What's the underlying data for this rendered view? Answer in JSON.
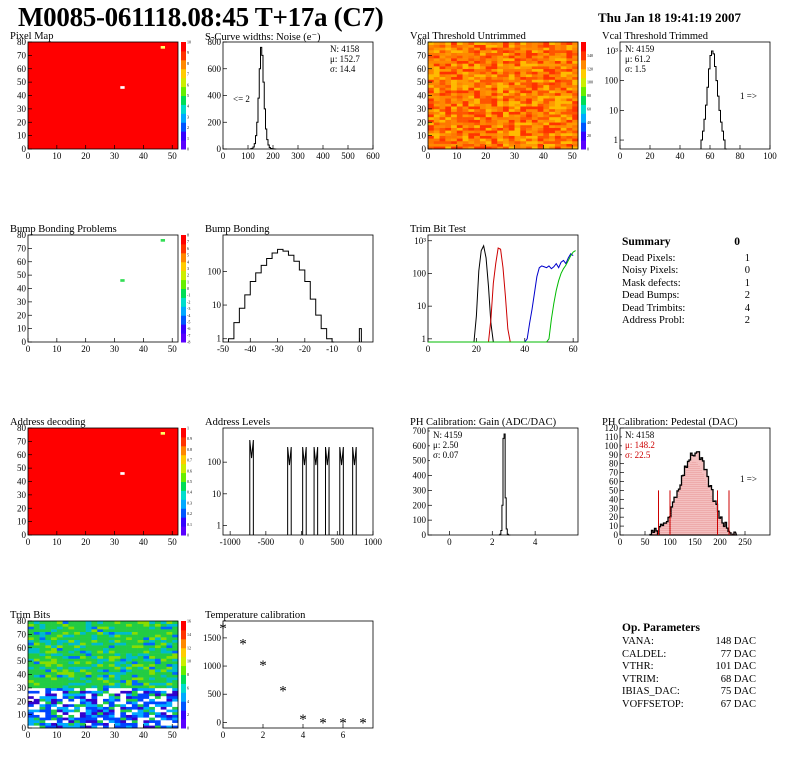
{
  "header": {
    "title": "M0085-061118.08:45 T+17a (C7)",
    "date": "Thu Jan 18 19:41:19 2007"
  },
  "summary": {
    "title": "Summary",
    "total": "0",
    "rows": [
      {
        "label": "Dead Pixels:",
        "value": "1"
      },
      {
        "label": "Noisy Pixels:",
        "value": "0"
      },
      {
        "label": "Mask defects:",
        "value": "1"
      },
      {
        "label": "Dead Bumps:",
        "value": "2"
      },
      {
        "label": "Dead Trimbits:",
        "value": "4"
      },
      {
        "label": "Address Probl:",
        "value": "2"
      }
    ]
  },
  "op_parameters": {
    "title": "Op. Parameters",
    "rows": [
      {
        "label": "VANA:",
        "value": "148 DAC"
      },
      {
        "label": "CALDEL:",
        "value": "77 DAC"
      },
      {
        "label": "VTHR:",
        "value": "101 DAC"
      },
      {
        "label": "VTRIM:",
        "value": "68 DAC"
      },
      {
        "label": "IBIAS_DAC:",
        "value": "75 DAC"
      },
      {
        "label": "VOFFSETOP:",
        "value": "67 DAC"
      }
    ]
  },
  "chart_data": [
    {
      "id": "pixel-map",
      "title": "Pixel Map",
      "type": "heatmap",
      "xlim": [
        0,
        52
      ],
      "ylim": [
        0,
        80
      ],
      "xticks": [
        0,
        10,
        20,
        30,
        40,
        50
      ],
      "yticks": [
        0,
        10,
        20,
        30,
        40,
        50,
        60,
        70,
        80
      ],
      "fill_color": "#ff0000",
      "zlim": [
        0,
        10
      ],
      "zticks": [
        0,
        1,
        2,
        3,
        4,
        5,
        6,
        7,
        8,
        9,
        10
      ],
      "special": [
        {
          "x": 32,
          "y": 46,
          "z": 0,
          "color": "#ffffff"
        },
        {
          "x": 46,
          "y": 76,
          "z": 9,
          "color": "#ffff66"
        }
      ]
    },
    {
      "id": "noise",
      "title": "S-Curve widths: Noise (e⁻)",
      "type": "histogram",
      "xlim": [
        0,
        600
      ],
      "ylim": [
        0,
        800
      ],
      "xticks": [
        0,
        100,
        200,
        300,
        400,
        500,
        600
      ],
      "yticks": [
        0,
        200,
        400,
        600,
        800
      ],
      "stats": [
        "N: 4158",
        "μ: 152.7",
        "σ: 14.4"
      ],
      "note": "<= 2",
      "x": [
        110,
        115,
        120,
        125,
        130,
        135,
        140,
        145,
        150,
        155,
        160,
        165,
        170,
        175,
        180,
        185,
        190,
        195,
        200,
        205
      ],
      "values": [
        2,
        5,
        15,
        40,
        100,
        200,
        380,
        600,
        760,
        700,
        500,
        300,
        150,
        70,
        30,
        10,
        4,
        2,
        1,
        0
      ]
    },
    {
      "id": "vcal-untrimmed",
      "title": "Vcal Threshold Untrimmed",
      "type": "heatmap",
      "xlim": [
        0,
        52
      ],
      "ylim": [
        0,
        80
      ],
      "xticks": [
        0,
        10,
        20,
        30,
        40,
        50
      ],
      "yticks": [
        0,
        10,
        20,
        30,
        40,
        50,
        60,
        70,
        80
      ],
      "zlim": [
        0,
        160
      ],
      "zticks": [
        0,
        20,
        40,
        60,
        80,
        100,
        120,
        140
      ],
      "palette": "orange-red-noise"
    },
    {
      "id": "vcal-trimmed",
      "title": "Vcal Threshold Trimmed",
      "type": "histogram",
      "yscale": "log",
      "xlim": [
        0,
        100
      ],
      "ylim": [
        0.5,
        2000
      ],
      "xticks": [
        0,
        20,
        40,
        60,
        80,
        100
      ],
      "yticks": [
        1,
        10,
        100,
        1000
      ],
      "stats": [
        "N: 4159",
        "μ: 61.2",
        "σ: 1.5"
      ],
      "note": "1 =>",
      "x": [
        54,
        55,
        56,
        57,
        58,
        59,
        60,
        61,
        62,
        63,
        64,
        65,
        66,
        67,
        68,
        69,
        70
      ],
      "values": [
        1,
        2,
        5,
        15,
        60,
        250,
        700,
        1000,
        800,
        300,
        100,
        30,
        10,
        4,
        2,
        1,
        0
      ]
    },
    {
      "id": "bump-bonding-problems",
      "title": "Bump Bonding Problems",
      "type": "heatmap",
      "xlim": [
        0,
        52
      ],
      "ylim": [
        0,
        80
      ],
      "xticks": [
        0,
        10,
        20,
        30,
        40,
        50
      ],
      "yticks": [
        0,
        10,
        20,
        30,
        40,
        50,
        60,
        70,
        80
      ],
      "fill_color": "#ffffff",
      "zlim": [
        -8,
        8
      ],
      "zticks": [
        -8,
        -7,
        -6,
        -5,
        -4,
        -3,
        -2,
        -1,
        0,
        1,
        2,
        3,
        4,
        5,
        6,
        7,
        8
      ],
      "special": [
        {
          "x": 32,
          "y": 46,
          "z": 1,
          "color": "#33dd55"
        },
        {
          "x": 46,
          "y": 76,
          "z": 1,
          "color": "#33dd55"
        }
      ]
    },
    {
      "id": "bump-bonding",
      "title": "Bump Bonding",
      "type": "histogram",
      "yscale": "log",
      "xlim": [
        -50,
        5
      ],
      "ylim": [
        0.8,
        1200
      ],
      "xticks": [
        -50,
        -40,
        -30,
        -20,
        -10,
        0
      ],
      "yticks": [
        1,
        10,
        100
      ],
      "x": [
        -48,
        -46,
        -44,
        -42,
        -40,
        -38,
        -36,
        -34,
        -32,
        -30,
        -28,
        -26,
        -24,
        -22,
        -20,
        -18,
        -16,
        -14,
        -12,
        -10,
        0
      ],
      "values": [
        1,
        3,
        8,
        20,
        50,
        90,
        150,
        240,
        350,
        450,
        400,
        300,
        200,
        110,
        50,
        15,
        5,
        2,
        1,
        0,
        2
      ]
    },
    {
      "id": "trim-bit-test",
      "title": "Trim Bit Test",
      "type": "line",
      "yscale": "log",
      "xlim": [
        0,
        62
      ],
      "ylim": [
        0.8,
        1500
      ],
      "xticks": [
        0,
        20,
        40,
        60
      ],
      "yticks": [
        1,
        10,
        100,
        1000
      ],
      "series": [
        {
          "color": "#000000",
          "x": [
            0,
            19,
            20,
            21,
            22,
            23,
            24,
            25,
            26,
            27
          ],
          "values": [
            0,
            0,
            5,
            120,
            500,
            700,
            300,
            40,
            3,
            0
          ]
        },
        {
          "color": "#cc0000",
          "x": [
            0,
            25,
            26,
            27,
            28,
            29,
            30,
            31,
            32,
            33,
            34
          ],
          "values": [
            0,
            0,
            4,
            50,
            200,
            600,
            550,
            150,
            20,
            2,
            0
          ]
        },
        {
          "color": "#0000cc",
          "x": [
            0,
            40,
            41,
            42,
            43,
            44,
            45,
            46,
            47,
            48,
            49,
            50,
            51,
            52,
            53,
            54,
            55,
            56,
            57,
            58,
            59,
            60
          ],
          "values": [
            0,
            0,
            1,
            3,
            8,
            25,
            80,
            150,
            170,
            160,
            150,
            170,
            140,
            160,
            200,
            150,
            220,
            250,
            200,
            300,
            400,
            350
          ]
        },
        {
          "color": "#00bb00",
          "x": [
            0,
            49,
            50,
            51,
            52,
            53,
            54,
            55,
            56,
            57,
            58,
            59,
            60,
            61
          ],
          "values": [
            0,
            0,
            1,
            4,
            12,
            30,
            60,
            100,
            140,
            180,
            250,
            350,
            450,
            500
          ]
        }
      ]
    },
    {
      "id": "address-decoding",
      "title": "Address decoding",
      "type": "heatmap",
      "xlim": [
        0,
        52
      ],
      "ylim": [
        0,
        80
      ],
      "xticks": [
        0,
        10,
        20,
        30,
        40,
        50
      ],
      "yticks": [
        0,
        10,
        20,
        30,
        40,
        50,
        60,
        70,
        80
      ],
      "fill_color": "#ff0000",
      "zlim": [
        0,
        1
      ],
      "zticks": [
        0,
        0.1,
        0.2,
        0.3,
        0.4,
        0.5,
        0.6,
        0.7,
        0.8,
        0.9,
        1
      ],
      "special": [
        {
          "x": 32,
          "y": 46,
          "z": 0,
          "color": "#ffffff"
        },
        {
          "x": 46,
          "y": 76,
          "z": 0.9,
          "color": "#ffff66"
        }
      ]
    },
    {
      "id": "address-levels",
      "title": "Address Levels",
      "type": "histogram",
      "yscale": "log",
      "xlim": [
        -1100,
        1000
      ],
      "ylim": [
        0.5,
        1200
      ],
      "xticks": [
        -1000,
        -500,
        0,
        500,
        1000
      ],
      "yticks": [
        1,
        10,
        100
      ],
      "peaks": [
        -700,
        -170,
        40,
        200,
        360,
        560,
        740
      ],
      "peak_heights": [
        500,
        300,
        300,
        300,
        300,
        300,
        300
      ]
    },
    {
      "id": "ph-gain",
      "title": "PH Calibration: Gain (ADC/DAC)",
      "type": "histogram",
      "xlim": [
        -1,
        6
      ],
      "ylim": [
        0,
        720
      ],
      "xticks": [
        0,
        2,
        4
      ],
      "yticks": [
        0,
        100,
        200,
        300,
        400,
        500,
        600,
        700
      ],
      "stats": [
        "N: 4159",
        "μ: 2.50",
        "σ: 0.07"
      ],
      "x": [
        2.3,
        2.35,
        2.4,
        2.45,
        2.5,
        2.55,
        2.6,
        2.65,
        2.7,
        2.75
      ],
      "values": [
        0,
        5,
        30,
        200,
        650,
        680,
        250,
        40,
        5,
        0
      ]
    },
    {
      "id": "ph-pedestal",
      "title": "PH Calibration: Pedestal (DAC)",
      "type": "histogram",
      "xlim": [
        0,
        300
      ],
      "ylim": [
        0,
        120
      ],
      "xticks": [
        0,
        50,
        100,
        150,
        200,
        250
      ],
      "yticks": [
        0,
        10,
        20,
        30,
        40,
        50,
        60,
        70,
        80,
        90,
        100,
        110,
        120
      ],
      "stats": [
        "N: 4158",
        "μ: 148.2",
        "σ: 22.5"
      ],
      "note": "1 =>",
      "fit_lines": [
        77,
        100,
        195,
        218
      ]
    },
    {
      "id": "trim-bits",
      "title": "Trim Bits",
      "type": "heatmap",
      "xlim": [
        0,
        52
      ],
      "ylim": [
        0,
        80
      ],
      "xticks": [
        0,
        10,
        20,
        30,
        40,
        50
      ],
      "yticks": [
        0,
        10,
        20,
        30,
        40,
        50,
        60,
        70,
        80
      ],
      "zlim": [
        0,
        16
      ],
      "zticks": [
        0,
        2,
        4,
        6,
        8,
        10,
        12,
        14,
        16
      ],
      "palette": "trim-noise"
    },
    {
      "id": "temperature-calibration",
      "title": "Temperature calibration",
      "type": "scatter",
      "xlim": [
        0,
        7.5
      ],
      "ylim": [
        -100,
        1800
      ],
      "xticks": [
        0,
        2,
        4,
        6
      ],
      "yticks": [
        0,
        500,
        1000,
        1500
      ],
      "x": [
        0,
        1,
        2,
        3,
        4,
        5,
        6,
        7
      ],
      "values": [
        1680,
        1400,
        1020,
        570,
        60,
        0,
        0,
        0
      ]
    }
  ]
}
